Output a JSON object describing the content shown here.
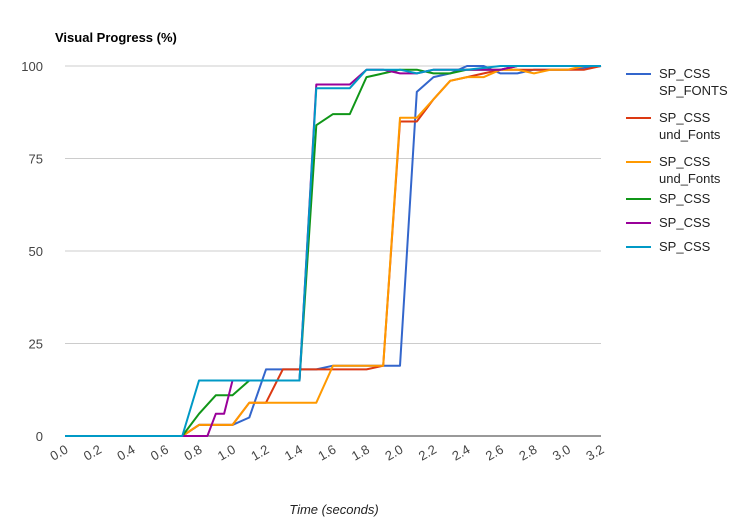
{
  "chart_data": {
    "type": "line",
    "title": "Visual Progress (%)",
    "xlabel": "Time (seconds)",
    "ylabel": "",
    "xlim": [
      0,
      3.2
    ],
    "ylim": [
      0,
      100
    ],
    "x_ticks": [
      "0.0",
      "0.2",
      "0.4",
      "0.6",
      "0.8",
      "1.0",
      "1.2",
      "1.4",
      "1.6",
      "1.8",
      "2.0",
      "2.2",
      "2.4",
      "2.6",
      "2.8",
      "3.0",
      "3.2"
    ],
    "y_ticks": [
      "0",
      "25",
      "50",
      "75",
      "100"
    ],
    "grid": true,
    "legend": "right",
    "series": [
      {
        "name": "SP_CSS SP_FONTS",
        "color": "#3366cc",
        "points": [
          [
            0,
            0
          ],
          [
            0.7,
            0
          ],
          [
            0.8,
            3
          ],
          [
            1.0,
            3
          ],
          [
            1.1,
            5
          ],
          [
            1.2,
            18
          ],
          [
            1.3,
            18
          ],
          [
            1.5,
            18
          ],
          [
            1.6,
            19
          ],
          [
            2.0,
            19
          ],
          [
            2.1,
            93
          ],
          [
            2.2,
            97
          ],
          [
            2.3,
            98
          ],
          [
            2.4,
            100
          ],
          [
            2.5,
            100
          ],
          [
            2.6,
            98
          ],
          [
            2.7,
            98
          ],
          [
            2.8,
            99
          ],
          [
            3.0,
            99
          ],
          [
            3.2,
            100
          ]
        ]
      },
      {
        "name": "SP_CSS und_Fonts",
        "color": "#dc3912",
        "points": [
          [
            0,
            0
          ],
          [
            0.7,
            0
          ],
          [
            0.8,
            3
          ],
          [
            0.9,
            3
          ],
          [
            1.0,
            3
          ],
          [
            1.1,
            9
          ],
          [
            1.2,
            9
          ],
          [
            1.3,
            18
          ],
          [
            1.5,
            18
          ],
          [
            1.6,
            18
          ],
          [
            1.8,
            18
          ],
          [
            1.9,
            19
          ],
          [
            2.0,
            85
          ],
          [
            2.1,
            85
          ],
          [
            2.2,
            91
          ],
          [
            2.3,
            96
          ],
          [
            2.4,
            97
          ],
          [
            2.5,
            98
          ],
          [
            2.6,
            99
          ],
          [
            2.8,
            99
          ],
          [
            3.0,
            99
          ],
          [
            3.1,
            99
          ],
          [
            3.2,
            100
          ]
        ]
      },
      {
        "name": "SP_CSS und_Fonts",
        "color": "#ff9900",
        "points": [
          [
            0,
            0
          ],
          [
            0.7,
            0
          ],
          [
            0.8,
            3
          ],
          [
            1.0,
            3
          ],
          [
            1.1,
            9
          ],
          [
            1.2,
            9
          ],
          [
            1.3,
            9
          ],
          [
            1.5,
            9
          ],
          [
            1.6,
            19
          ],
          [
            1.9,
            19
          ],
          [
            2.0,
            86
          ],
          [
            2.1,
            86
          ],
          [
            2.2,
            91
          ],
          [
            2.3,
            96
          ],
          [
            2.4,
            97
          ],
          [
            2.5,
            97
          ],
          [
            2.6,
            99
          ],
          [
            2.7,
            99
          ],
          [
            2.8,
            98
          ],
          [
            2.9,
            99
          ],
          [
            3.0,
            99
          ],
          [
            3.1,
            100
          ],
          [
            3.2,
            100
          ]
        ]
      },
      {
        "name": "SP_CSS",
        "color": "#109618",
        "points": [
          [
            0,
            0
          ],
          [
            0.7,
            0
          ],
          [
            0.8,
            6
          ],
          [
            0.9,
            11
          ],
          [
            1.0,
            11
          ],
          [
            1.1,
            15
          ],
          [
            1.4,
            15
          ],
          [
            1.5,
            84
          ],
          [
            1.6,
            87
          ],
          [
            1.7,
            87
          ],
          [
            1.8,
            97
          ],
          [
            1.9,
            98
          ],
          [
            2.0,
            99
          ],
          [
            2.1,
            99
          ],
          [
            2.2,
            98
          ],
          [
            2.3,
            98
          ],
          [
            2.4,
            99
          ],
          [
            2.5,
            99
          ],
          [
            2.6,
            99
          ],
          [
            2.7,
            100
          ],
          [
            3.2,
            100
          ]
        ]
      },
      {
        "name": "SP_CSS",
        "color": "#990099",
        "points": [
          [
            0,
            0
          ],
          [
            0.85,
            0
          ],
          [
            0.9,
            6
          ],
          [
            0.95,
            6
          ],
          [
            1.0,
            15
          ],
          [
            1.4,
            15
          ],
          [
            1.5,
            95
          ],
          [
            1.6,
            95
          ],
          [
            1.7,
            95
          ],
          [
            1.8,
            99
          ],
          [
            1.9,
            99
          ],
          [
            2.0,
            98
          ],
          [
            2.1,
            98
          ],
          [
            2.2,
            99
          ],
          [
            2.3,
            99
          ],
          [
            2.4,
            99
          ],
          [
            2.6,
            99
          ],
          [
            2.7,
            100
          ],
          [
            3.2,
            100
          ]
        ]
      },
      {
        "name": "SP_CSS",
        "color": "#0099c6",
        "points": [
          [
            0,
            0
          ],
          [
            0.7,
            0
          ],
          [
            0.8,
            15
          ],
          [
            1.0,
            15
          ],
          [
            1.4,
            15
          ],
          [
            1.5,
            94
          ],
          [
            1.6,
            94
          ],
          [
            1.7,
            94
          ],
          [
            1.8,
            99
          ],
          [
            1.9,
            99
          ],
          [
            2.0,
            99
          ],
          [
            2.1,
            98
          ],
          [
            2.2,
            99
          ],
          [
            2.3,
            99
          ],
          [
            2.4,
            99
          ],
          [
            2.6,
            100
          ],
          [
            3.2,
            100
          ]
        ]
      }
    ]
  }
}
